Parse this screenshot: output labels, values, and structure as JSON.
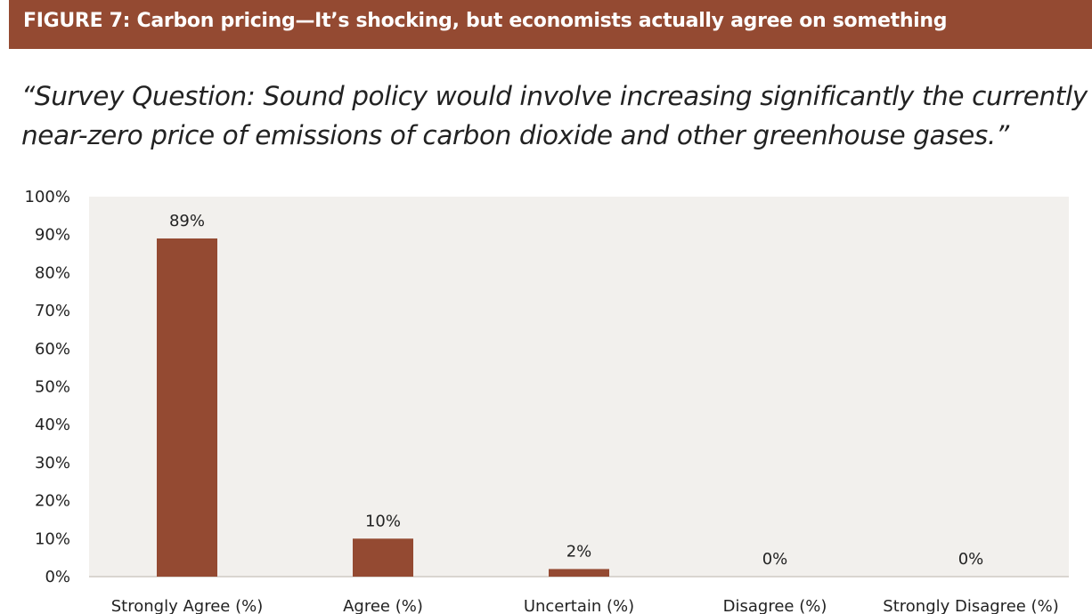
{
  "figure": {
    "title": "FIGURE 7: Carbon pricing—It’s shocking, but economists actually agree on something",
    "quote_line1": "“Survey Question: Sound policy would involve increasing significantly the currently",
    "quote_line2": "near-zero price of emissions of carbon dioxide and other greenhouse gases.”"
  },
  "colors": {
    "banner": "#944a32",
    "bar": "#944a32",
    "plot_background": "#f2f0ed"
  },
  "chart_data": {
    "type": "bar",
    "title": "",
    "xlabel": "",
    "ylabel": "",
    "categories": [
      "Strongly Agree (%)",
      "Agree (%)",
      "Uncertain (%)",
      "Disagree (%)",
      "Strongly Disagree (%)"
    ],
    "values": [
      89,
      10,
      2,
      0,
      0
    ],
    "data_labels": [
      "89%",
      "10%",
      "2%",
      "0%",
      "0%"
    ],
    "ylim": [
      0,
      100
    ],
    "yticks": [
      "0%",
      "10%",
      "20%",
      "30%",
      "40%",
      "50%",
      "60%",
      "70%",
      "80%",
      "90%",
      "100%"
    ],
    "grid": false,
    "legend": "none"
  }
}
